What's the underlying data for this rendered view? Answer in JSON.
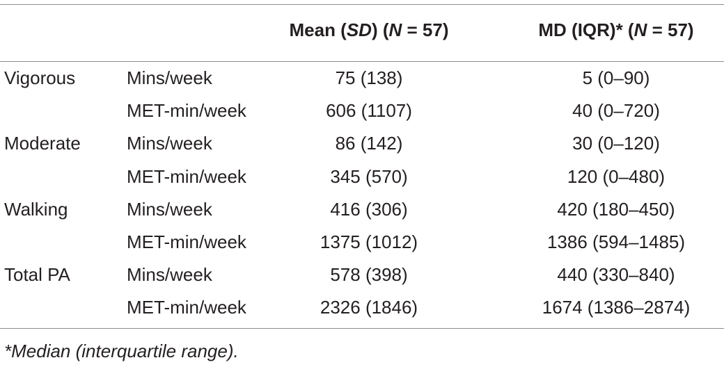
{
  "table": {
    "header": {
      "mean": {
        "a": "Mean (",
        "b": "SD",
        "c": ") (",
        "d": "N",
        "e": " = 57)"
      },
      "md": {
        "a": "MD (IQR)* (",
        "b": "N",
        "c": " = 57)"
      }
    },
    "rows": [
      {
        "category": "Vigorous",
        "unit": "Mins/week",
        "mean_sd": "75 (138)",
        "md_iqr": "5 (0–90)"
      },
      {
        "category": "",
        "unit": "MET-min/week",
        "mean_sd": "606 (1107)",
        "md_iqr": "40 (0–720)"
      },
      {
        "category": "Moderate",
        "unit": "Mins/week",
        "mean_sd": "86 (142)",
        "md_iqr": "30 (0–120)"
      },
      {
        "category": "",
        "unit": "MET-min/week",
        "mean_sd": "345 (570)",
        "md_iqr": "120 (0–480)"
      },
      {
        "category": "Walking",
        "unit": "Mins/week",
        "mean_sd": "416 (306)",
        "md_iqr": "420 (180–450)"
      },
      {
        "category": "",
        "unit": "MET-min/week",
        "mean_sd": "1375 (1012)",
        "md_iqr": "1386 (594–1485)"
      },
      {
        "category": "Total PA",
        "unit": "Mins/week",
        "mean_sd": "578 (398)",
        "md_iqr": "440 (330–840)"
      },
      {
        "category": "",
        "unit": "MET-min/week",
        "mean_sd": "2326 (1846)",
        "md_iqr": "1674 (1386–2874)"
      }
    ]
  },
  "footnote": "*Median (interquartile range)."
}
